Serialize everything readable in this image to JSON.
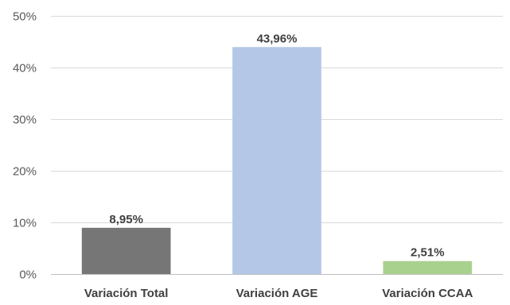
{
  "chart_data": {
    "type": "bar",
    "title": "",
    "xlabel": "",
    "ylabel": "",
    "categories": [
      "Variación Total",
      "Variación AGE",
      "Variación CCAA"
    ],
    "values": [
      8.95,
      43.96,
      2.51
    ],
    "data_labels": [
      "8,95%",
      "43,96%",
      "2,51%"
    ],
    "colors": [
      "#767676",
      "#b4c7e7",
      "#a9d18e"
    ],
    "ylim": [
      0,
      50
    ],
    "yticks": [
      0,
      10,
      20,
      30,
      40,
      50
    ],
    "ytick_labels": [
      "0%",
      "10%",
      "20%",
      "30%",
      "40%",
      "50%"
    ],
    "grid": true,
    "legend": "none"
  }
}
